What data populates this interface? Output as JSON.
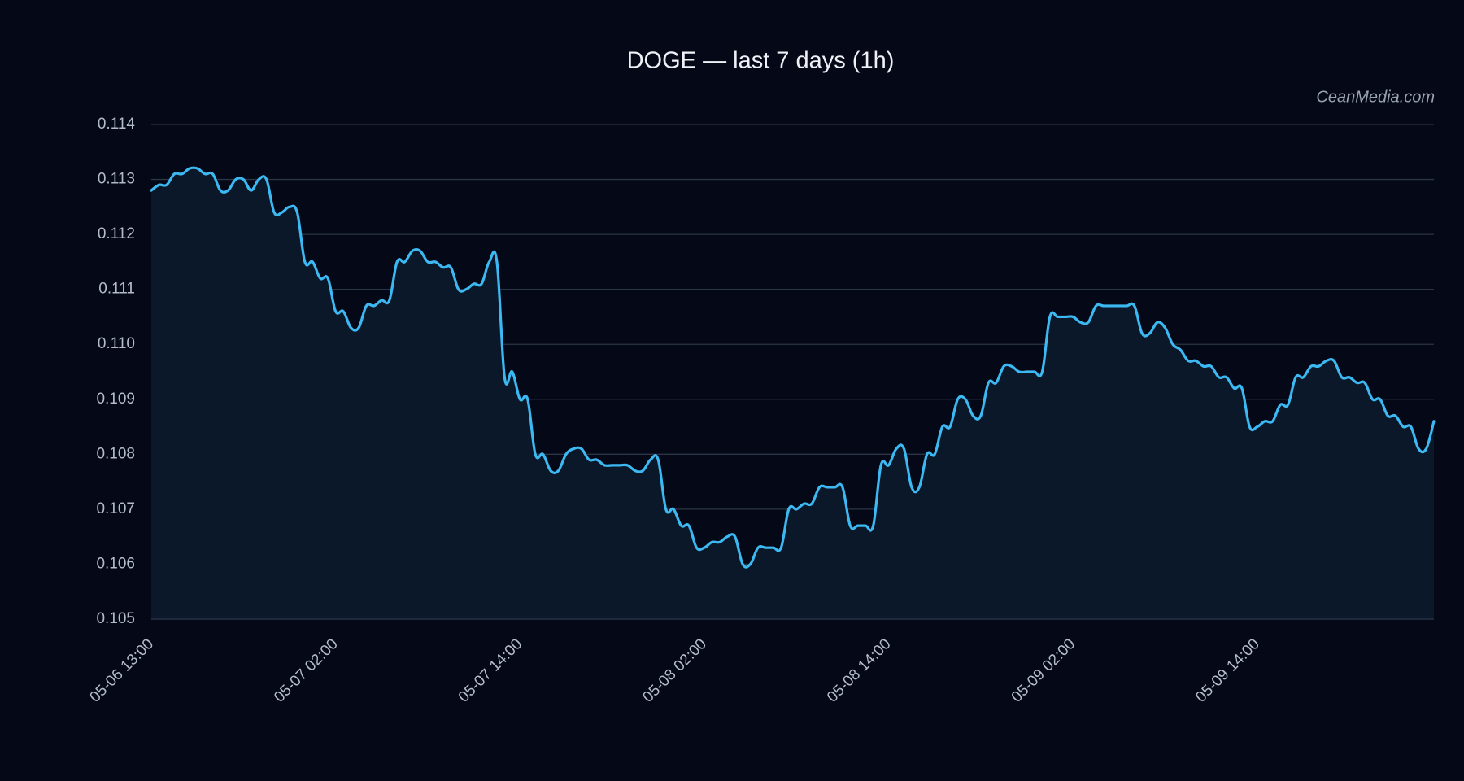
{
  "chart_data": {
    "type": "line",
    "title": "DOGE — last 7 days (1h)",
    "watermark": "CeanMedia.com",
    "color": "#3cb9f2",
    "grid": true,
    "ylim": [
      0.105,
      0.114
    ],
    "yticks": [
      0.105,
      0.106,
      0.107,
      0.108,
      0.109,
      {
        "value": 0.11,
        "label": "0.110"
      },
      0.111,
      0.112,
      0.113,
      0.114
    ],
    "categories": [
      "05-06 13:00",
      null,
      null,
      null,
      null,
      null,
      null,
      null,
      null,
      null,
      null,
      null,
      null,
      null,
      null,
      null,
      null,
      null,
      null,
      null,
      null,
      null,
      null,
      null,
      "05-07 02:00",
      null,
      null,
      null,
      null,
      null,
      null,
      null,
      null,
      null,
      null,
      null,
      null,
      null,
      null,
      null,
      null,
      null,
      null,
      null,
      null,
      null,
      null,
      null,
      "05-07 14:00",
      null,
      null,
      null,
      null,
      null,
      null,
      null,
      null,
      null,
      null,
      null,
      null,
      null,
      null,
      null,
      null,
      null,
      null,
      null,
      null,
      null,
      null,
      null,
      "05-08 02:00",
      null,
      null,
      null,
      null,
      null,
      null,
      null,
      null,
      null,
      null,
      null,
      null,
      null,
      null,
      null,
      null,
      null,
      null,
      null,
      null,
      null,
      null,
      null,
      "05-08 14:00",
      null,
      null,
      null,
      null,
      null,
      null,
      null,
      null,
      null,
      null,
      null,
      null,
      null,
      null,
      null,
      null,
      null,
      null,
      null,
      null,
      null,
      null,
      null,
      "05-09 02:00",
      null,
      null,
      null,
      null,
      null,
      null,
      null,
      null,
      null,
      null,
      null,
      null,
      null,
      null,
      null,
      null,
      null,
      null,
      null,
      null,
      null,
      null,
      null,
      "05-09 14:00",
      null,
      null,
      null,
      null,
      null,
      null,
      null,
      null,
      null,
      null,
      null,
      null,
      null,
      null,
      null,
      null,
      null,
      null,
      null,
      null,
      null,
      null,
      null
    ],
    "values": [
      0.1128,
      0.1129,
      0.1129,
      0.1131,
      0.1131,
      0.1132,
      0.1132,
      0.1131,
      0.1131,
      0.1128,
      0.1128,
      0.113,
      0.113,
      0.1128,
      0.113,
      0.113,
      0.1124,
      0.1124,
      0.1125,
      0.1124,
      0.1115,
      0.1115,
      0.1112,
      0.1112,
      0.1106,
      0.1106,
      0.1103,
      0.1103,
      0.1107,
      0.1107,
      0.1108,
      0.1108,
      0.1115,
      0.1115,
      0.1117,
      0.1117,
      0.1115,
      0.1115,
      0.1114,
      0.1114,
      0.111,
      0.111,
      0.1111,
      0.1111,
      0.1115,
      0.1115,
      0.1094,
      0.1095,
      0.109,
      0.109,
      0.108,
      0.108,
      0.1077,
      0.1077,
      0.108,
      0.1081,
      0.1081,
      0.1079,
      0.1079,
      0.1078,
      0.1078,
      0.1078,
      0.1078,
      0.1077,
      0.1077,
      0.1079,
      0.1079,
      0.107,
      0.107,
      0.1067,
      0.1067,
      0.1063,
      0.1063,
      0.1064,
      0.1064,
      0.1065,
      0.1065,
      0.106,
      0.106,
      0.1063,
      0.1063,
      0.1063,
      0.1063,
      0.107,
      0.107,
      0.1071,
      0.1071,
      0.1074,
      0.1074,
      0.1074,
      0.1074,
      0.1067,
      0.1067,
      0.1067,
      0.1067,
      0.1078,
      0.1078,
      0.1081,
      0.1081,
      0.1074,
      0.1074,
      0.108,
      0.108,
      0.1085,
      0.1085,
      0.109,
      0.109,
      0.1087,
      0.1087,
      0.1093,
      0.1093,
      0.1096,
      0.1096,
      0.1095,
      0.1095,
      0.1095,
      0.1095,
      0.1105,
      0.1105,
      0.1105,
      0.1105,
      0.1104,
      0.1104,
      0.1107,
      0.1107,
      0.1107,
      0.1107,
      0.1107,
      0.1107,
      0.1102,
      0.1102,
      0.1104,
      0.1103,
      0.11,
      0.1099,
      0.1097,
      0.1097,
      0.1096,
      0.1096,
      0.1094,
      0.1094,
      0.1092,
      0.1092,
      0.1085,
      0.1085,
      0.1086,
      0.1086,
      0.1089,
      0.1089,
      0.1094,
      0.1094,
      0.1096,
      0.1096,
      0.1097,
      0.1097,
      0.1094,
      0.1094,
      0.1093,
      0.1093,
      0.109,
      0.109,
      0.1087,
      0.1087,
      0.1085,
      0.1085,
      0.1081,
      0.1081,
      0.1086
    ]
  }
}
